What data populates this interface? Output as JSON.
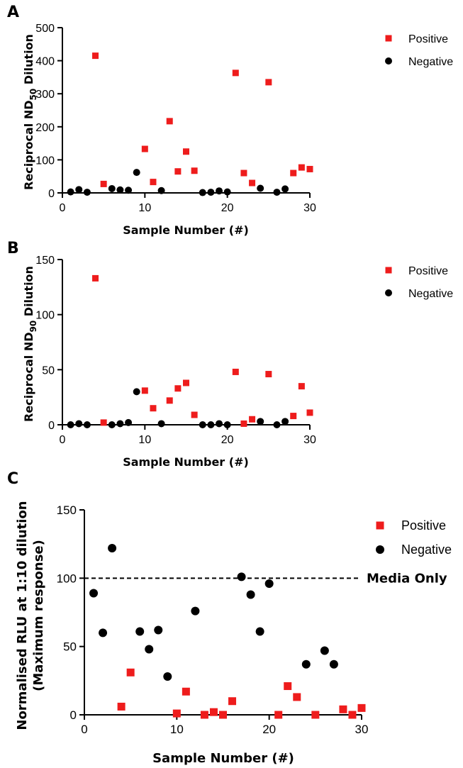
{
  "chart_data": [
    {
      "panel": "A",
      "type": "scatter",
      "xlabel": "Sample Number (#)",
      "ylabel_main": "Reciprocal ND",
      "ylabel_sub": "50",
      "ylabel_tail": " Dilution",
      "xlim": [
        0,
        30
      ],
      "ylim": [
        0,
        500
      ],
      "xticks": [
        0,
        10,
        20,
        30
      ],
      "yticks": [
        0,
        100,
        200,
        300,
        400,
        500
      ],
      "legend_position": "top-right",
      "series": [
        {
          "name": "Positive",
          "marker": "square",
          "color": "#ee1c1c",
          "points": [
            [
              4,
              415
            ],
            [
              5,
              27
            ],
            [
              10,
              133
            ],
            [
              11,
              33
            ],
            [
              13,
              217
            ],
            [
              14,
              65
            ],
            [
              15,
              125
            ],
            [
              16,
              67
            ],
            [
              21,
              363
            ],
            [
              22,
              60
            ],
            [
              23,
              30
            ],
            [
              25,
              335
            ],
            [
              28,
              60
            ],
            [
              29,
              77
            ],
            [
              30,
              72
            ]
          ]
        },
        {
          "name": "Negative",
          "marker": "circle",
          "color": "#000000",
          "points": [
            [
              1,
              3
            ],
            [
              2,
              10
            ],
            [
              3,
              2
            ],
            [
              6,
              13
            ],
            [
              7,
              9
            ],
            [
              8,
              8
            ],
            [
              9,
              62
            ],
            [
              12,
              7
            ],
            [
              17,
              1
            ],
            [
              18,
              2
            ],
            [
              19,
              6
            ],
            [
              20,
              3
            ],
            [
              24,
              14
            ],
            [
              26,
              2
            ],
            [
              27,
              12
            ]
          ]
        }
      ]
    },
    {
      "panel": "B",
      "type": "scatter",
      "xlabel": "Sample Number (#)",
      "ylabel_main": "Reciprocal ND",
      "ylabel_sub": "90",
      "ylabel_tail": " Dilution",
      "xlim": [
        0,
        30
      ],
      "ylim": [
        0,
        150
      ],
      "xticks": [
        0,
        10,
        20,
        30
      ],
      "yticks": [
        0,
        50,
        100,
        150
      ],
      "legend_position": "top-right",
      "series": [
        {
          "name": "Positive",
          "marker": "square",
          "color": "#ee1c1c",
          "points": [
            [
              4,
              133
            ],
            [
              5,
              2
            ],
            [
              10,
              31
            ],
            [
              11,
              15
            ],
            [
              13,
              22
            ],
            [
              14,
              33
            ],
            [
              15,
              38
            ],
            [
              16,
              9
            ],
            [
              21,
              48
            ],
            [
              22,
              1
            ],
            [
              23,
              5
            ],
            [
              25,
              46
            ],
            [
              28,
              8
            ],
            [
              29,
              35
            ],
            [
              30,
              11
            ]
          ]
        },
        {
          "name": "Negative",
          "marker": "circle",
          "color": "#000000",
          "points": [
            [
              1,
              0
            ],
            [
              2,
              1
            ],
            [
              3,
              0
            ],
            [
              6,
              0
            ],
            [
              7,
              1
            ],
            [
              8,
              2
            ],
            [
              9,
              30
            ],
            [
              12,
              1
            ],
            [
              17,
              0
            ],
            [
              18,
              0
            ],
            [
              19,
              1
            ],
            [
              20,
              0
            ],
            [
              24,
              3
            ],
            [
              26,
              0
            ],
            [
              27,
              3
            ]
          ]
        }
      ]
    },
    {
      "panel": "C",
      "type": "scatter",
      "xlabel": "Sample Number (#)",
      "ylabel_line1": "Normalised RLU at 1:10 dilution",
      "ylabel_line2": "(Maximum response)",
      "xlim": [
        0,
        30
      ],
      "ylim": [
        0,
        150
      ],
      "xticks": [
        0,
        10,
        20,
        30
      ],
      "yticks": [
        0,
        50,
        100,
        150
      ],
      "legend_position": "top-right",
      "reference_line": {
        "y": 100,
        "style": "dashed",
        "label": "Media  Only"
      },
      "series": [
        {
          "name": "Positive",
          "marker": "square",
          "color": "#ee1c1c",
          "points": [
            [
              4,
              6
            ],
            [
              5,
              31
            ],
            [
              10,
              1
            ],
            [
              11,
              17
            ],
            [
              13,
              0
            ],
            [
              14,
              2
            ],
            [
              15,
              0
            ],
            [
              16,
              10
            ],
            [
              21,
              0
            ],
            [
              22,
              21
            ],
            [
              23,
              13
            ],
            [
              25,
              0
            ],
            [
              28,
              4
            ],
            [
              29,
              0
            ],
            [
              30,
              5
            ]
          ]
        },
        {
          "name": "Negative",
          "marker": "circle",
          "color": "#000000",
          "points": [
            [
              1,
              89
            ],
            [
              2,
              60
            ],
            [
              3,
              122
            ],
            [
              6,
              61
            ],
            [
              7,
              48
            ],
            [
              8,
              62
            ],
            [
              9,
              28
            ],
            [
              12,
              76
            ],
            [
              17,
              101
            ],
            [
              18,
              88
            ],
            [
              19,
              61
            ],
            [
              20,
              96
            ],
            [
              24,
              37
            ],
            [
              26,
              47
            ],
            [
              27,
              37
            ]
          ]
        }
      ]
    }
  ]
}
